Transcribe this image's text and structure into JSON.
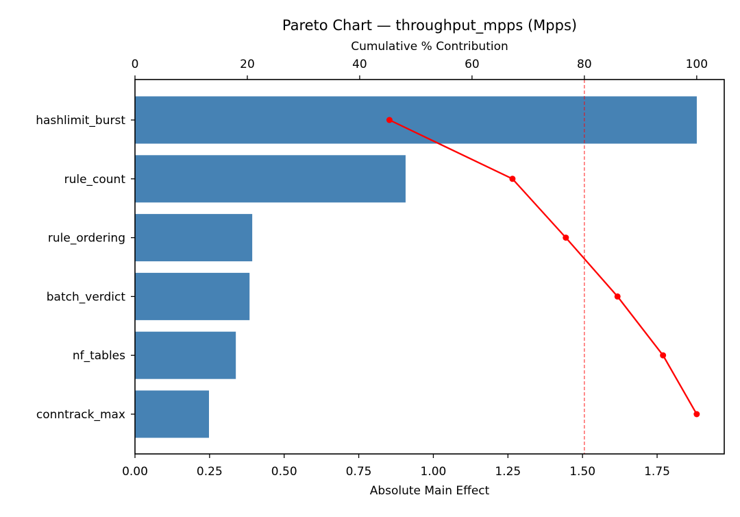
{
  "chart_data": {
    "type": "bar",
    "orientation": "horizontal",
    "title": "Pareto Chart — throughput_mpps (Mpps)",
    "xlabel": "Absolute Main Effect",
    "x2label": "Cumulative % Contribution",
    "ylabel": "",
    "categories": [
      "hashlimit_burst",
      "rule_count",
      "rule_ordering",
      "batch_verdict",
      "nf_tables",
      "conntrack_max"
    ],
    "series": [
      {
        "name": "Absolute Main Effect",
        "type": "bar",
        "axis": "bottom",
        "color": "#4682b4",
        "values": [
          1.883,
          0.907,
          0.393,
          0.384,
          0.338,
          0.248
        ]
      },
      {
        "name": "Cumulative % Contribution",
        "type": "line",
        "axis": "top",
        "color": "#ff0000",
        "marker": "circle",
        "values": [
          45.3,
          67.2,
          76.7,
          85.9,
          94.0,
          100.0
        ]
      }
    ],
    "xlim": [
      0,
      1.975
    ],
    "x2lim": [
      0,
      104.9
    ],
    "xticks": [
      "0.00",
      "0.25",
      "0.50",
      "0.75",
      "1.00",
      "1.25",
      "1.50",
      "1.75"
    ],
    "x2ticks": [
      "0",
      "20",
      "40",
      "60",
      "80",
      "100"
    ],
    "annotations": [
      {
        "type": "vline",
        "axis": "top",
        "value": 80,
        "style": "dashed",
        "color": "#ff0000",
        "alpha": 0.7
      }
    ],
    "grid": false,
    "legend": null
  }
}
